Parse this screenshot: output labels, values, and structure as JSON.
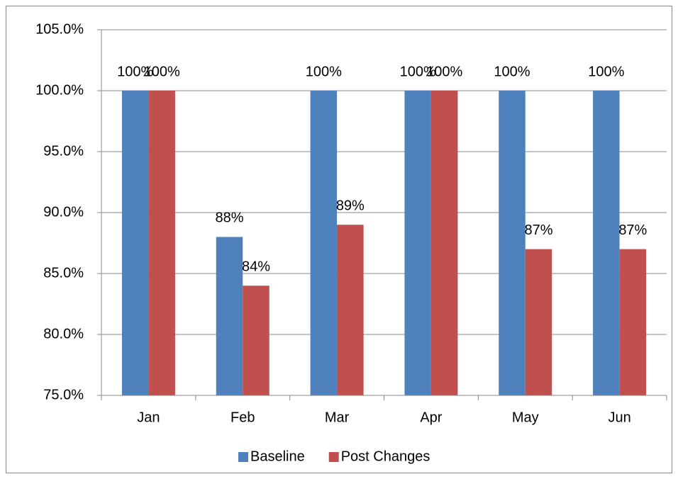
{
  "chart_data": {
    "type": "bar",
    "categories": [
      "Jan",
      "Feb",
      "Mar",
      "Apr",
      "May",
      "Jun"
    ],
    "series": [
      {
        "name": "Baseline",
        "color": "#4f81bd",
        "values": [
          100,
          88,
          100,
          100,
          100,
          100
        ],
        "value_labels": [
          "100%",
          "88%",
          "100%",
          "100%",
          "100%",
          "100%"
        ]
      },
      {
        "name": "Post Changes",
        "color": "#c0504d",
        "values": [
          100,
          84,
          89,
          100,
          87,
          87
        ],
        "value_labels": [
          "100%",
          "84%",
          "89%",
          "100%",
          "87%",
          "87%"
        ]
      }
    ],
    "ylim": [
      75,
      105
    ],
    "yticks": [
      {
        "value": 75,
        "label": "75.0%"
      },
      {
        "value": 80,
        "label": "80.0%"
      },
      {
        "value": 85,
        "label": "85.0%"
      },
      {
        "value": 90,
        "label": "90.0%"
      },
      {
        "value": 95,
        "label": "95.0%"
      },
      {
        "value": 100,
        "label": "100.0%"
      },
      {
        "value": 105,
        "label": "105.0%"
      }
    ],
    "grid": true,
    "legend": "bottom"
  }
}
